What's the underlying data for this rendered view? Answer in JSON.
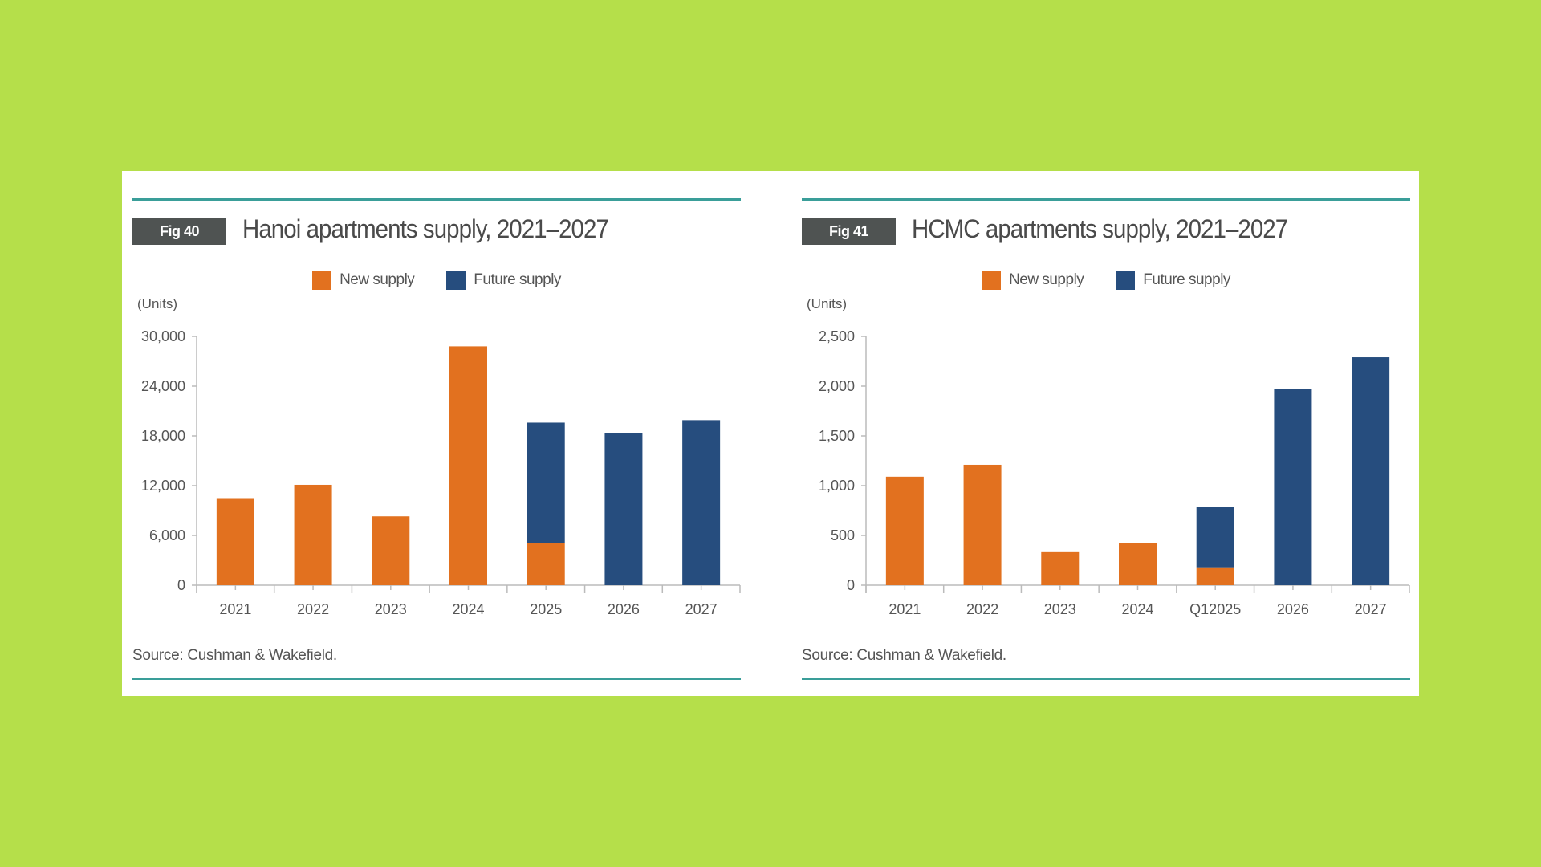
{
  "colors": {
    "background": "#b5df4a",
    "new_supply": "#e2711f",
    "future_supply": "#264d7e",
    "rule": "#3a9e99",
    "badge": "#4f5352"
  },
  "chart_data": [
    {
      "type": "bar",
      "stacked": true,
      "fig_label": "Fig 40",
      "title": "Hanoi apartments supply, 2021–2027",
      "ylabel": "(Units)",
      "xlabel": "",
      "categories": [
        "2021",
        "2022",
        "2023",
        "2024",
        "2025",
        "2026",
        "2027"
      ],
      "series": [
        {
          "name": "New supply",
          "color": "#e2711f",
          "values": [
            10500,
            12100,
            8300,
            28800,
            5100,
            0,
            0
          ]
        },
        {
          "name": "Future supply",
          "color": "#264d7e",
          "values": [
            0,
            0,
            0,
            0,
            14500,
            18300,
            19900
          ]
        }
      ],
      "ylim": [
        0,
        30000
      ],
      "yticks": [
        0,
        6000,
        12000,
        18000,
        24000,
        30000
      ],
      "ytick_labels": [
        "0",
        "6,000",
        "12,000",
        "18,000",
        "24,000",
        "30,000"
      ],
      "legend_position": "top-center",
      "grid": false,
      "source": "Source: Cushman & Wakefield."
    },
    {
      "type": "bar",
      "stacked": true,
      "fig_label": "Fig 41",
      "title": "HCMC apartments supply, 2021–2027",
      "ylabel": "(Units)",
      "xlabel": "",
      "categories": [
        "2021",
        "2022",
        "2023",
        "2024",
        "Q12025",
        "2026",
        "2027"
      ],
      "series": [
        {
          "name": "New supply",
          "color": "#e2711f",
          "values": [
            1090,
            1210,
            340,
            425,
            180,
            0,
            0
          ]
        },
        {
          "name": "Future supply",
          "color": "#264d7e",
          "values": [
            0,
            0,
            0,
            0,
            605,
            1975,
            2290
          ]
        }
      ],
      "ylim": [
        0,
        2500
      ],
      "yticks": [
        0,
        500,
        1000,
        1500,
        2000,
        2500
      ],
      "ytick_labels": [
        "0",
        "500",
        "1,000",
        "1,500",
        "2,000",
        "2,500"
      ],
      "legend_position": "top-center",
      "grid": false,
      "source": "Source: Cushman & Wakefield."
    }
  ]
}
